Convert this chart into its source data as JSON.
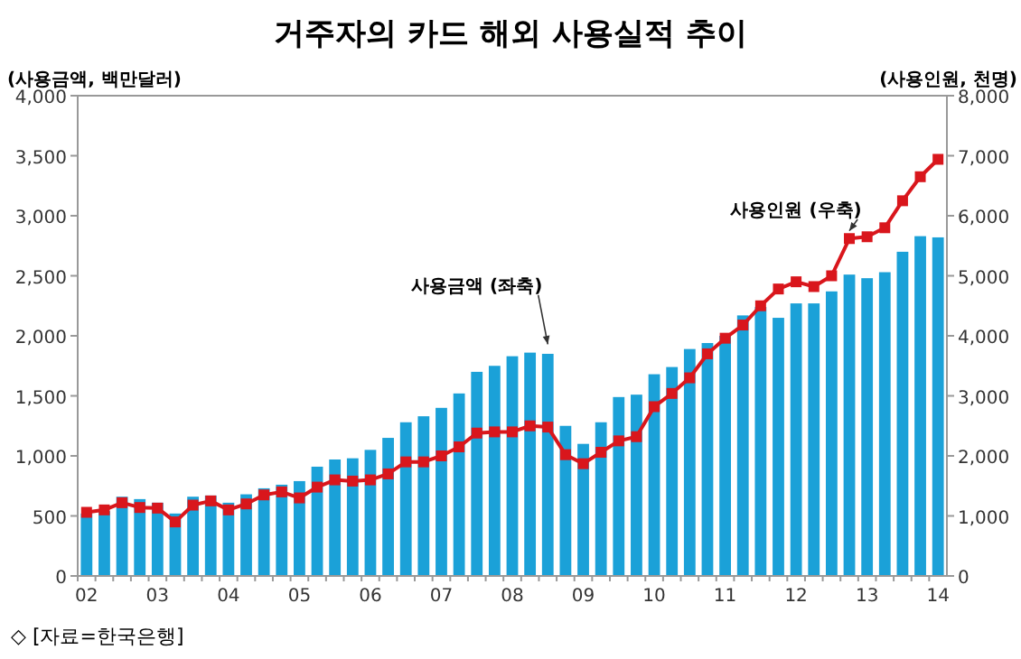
{
  "chart_data": {
    "type": "bar",
    "title": "거주자의 카드 해외 사용실적 추이",
    "ylabel": "(사용금액, 백만달러)",
    "y2label": "(사용인원, 천명)",
    "categories": [
      "02",
      null,
      null,
      null,
      "03",
      null,
      null,
      null,
      "04",
      null,
      null,
      null,
      "05",
      null,
      null,
      null,
      "06",
      null,
      null,
      null,
      "07",
      null,
      null,
      null,
      "08",
      null,
      null,
      null,
      "09",
      null,
      null,
      null,
      "10",
      null,
      null,
      null,
      "11",
      null,
      null,
      null,
      "12",
      null,
      null,
      null,
      "13",
      null,
      null,
      null,
      "14"
    ],
    "series": [
      {
        "name": "사용금액 (좌축)",
        "color": "#1ba1d8",
        "values": [
          520,
          540,
          660,
          640,
          610,
          520,
          660,
          670,
          610,
          680,
          730,
          760,
          790,
          910,
          970,
          980,
          1050,
          1150,
          1280,
          1330,
          1400,
          1520,
          1700,
          1750,
          1830,
          1860,
          1850,
          1250,
          1100,
          1280,
          1490,
          1510,
          1680,
          1740,
          1890,
          1940,
          2000,
          2170,
          2240,
          2150,
          2270,
          2270,
          2370,
          2510,
          2480,
          2530,
          2700,
          2830,
          2820
        ]
      },
      {
        "name": "사용인원 (우축)",
        "type": "line",
        "axis": "y2",
        "color": "#d9161c",
        "marker": "square",
        "values": [
          1060,
          1100,
          1220,
          1140,
          1130,
          900,
          1180,
          1250,
          1100,
          1200,
          1350,
          1400,
          1300,
          1480,
          1600,
          1580,
          1600,
          1700,
          1900,
          1900,
          2000,
          2150,
          2380,
          2400,
          2400,
          2500,
          2480,
          2020,
          1870,
          2060,
          2250,
          2320,
          2820,
          3040,
          3300,
          3700,
          3960,
          4180,
          4500,
          4780,
          4900,
          4820,
          5000,
          5620,
          5650,
          5800,
          6250,
          6650,
          6940
        ]
      }
    ],
    "ylim": [
      0,
      4000
    ],
    "yticks": [
      0,
      {
        "value": 500,
        "label": "500"
      },
      {
        "value": 1000,
        "label": "1,000"
      },
      {
        "value": 1500,
        "label": "1,500"
      },
      {
        "value": 2000,
        "label": "2,000"
      },
      {
        "value": 2500,
        "label": "2,500"
      },
      {
        "value": 3000,
        "label": "3,000"
      },
      {
        "value": 3500,
        "label": "3,500"
      },
      {
        "value": 4000,
        "label": "4,000"
      }
    ],
    "y2lim": [
      0,
      8000
    ],
    "y2ticks": [
      0,
      {
        "value": 1000,
        "label": "1,000"
      },
      {
        "value": 2000,
        "label": "2,000"
      },
      {
        "value": 3000,
        "label": "3,000"
      },
      {
        "value": 4000,
        "label": "4,000"
      },
      {
        "value": 5000,
        "label": "5,000"
      },
      {
        "value": 6000,
        "label": "6,000"
      },
      {
        "value": 7000,
        "label": "7,000"
      },
      {
        "value": 8000,
        "label": "8,000"
      }
    ],
    "annotations": [
      "◇ [자료=한국은행]"
    ],
    "grid": false
  }
}
